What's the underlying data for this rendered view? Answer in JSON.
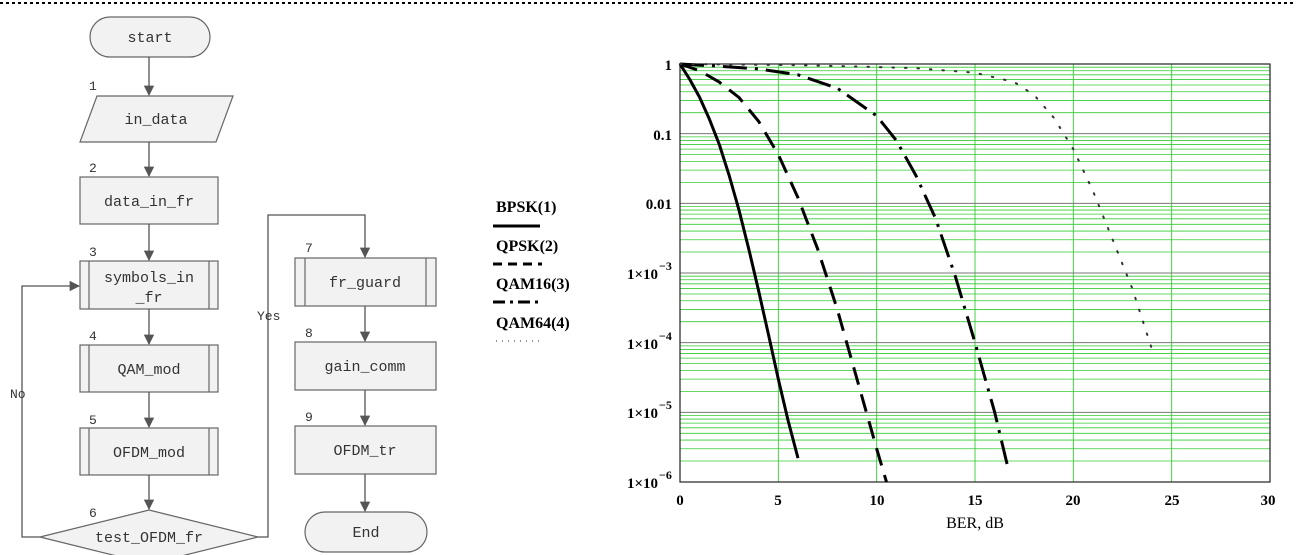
{
  "flowchart": {
    "nodes": [
      {
        "id": "start",
        "label": "start",
        "num": ""
      },
      {
        "id": "in_data",
        "label": "in_data",
        "num": "1"
      },
      {
        "id": "data_in_fr",
        "label": "data_in_fr",
        "num": "2"
      },
      {
        "id": "symbols_in_fr",
        "label_line1": "symbols_in",
        "label_line2": "_fr",
        "num": "3"
      },
      {
        "id": "qam_mod",
        "label": "QAM_mod",
        "num": "4"
      },
      {
        "id": "ofdm_mod",
        "label": "OFDM_mod",
        "num": "5"
      },
      {
        "id": "test_ofdm_fr",
        "label": "test_OFDM_fr",
        "num": "6"
      },
      {
        "id": "fr_guard",
        "label": "fr_guard",
        "num": "7"
      },
      {
        "id": "gain_comm",
        "label": "gain_comm",
        "num": "8"
      },
      {
        "id": "ofdm_tr",
        "label": "OFDM_tr",
        "num": "9"
      },
      {
        "id": "end",
        "label": "End",
        "num": ""
      }
    ],
    "edges": {
      "yes_label": "Yes",
      "no_label": "No"
    }
  },
  "chart_data": {
    "type": "line",
    "xlabel": "BER, dB",
    "ylabel": "",
    "title": "",
    "xlim": [
      0,
      30
    ],
    "ylim": [
      1e-06,
      1
    ],
    "y_scale": "log",
    "x_ticks": [
      "0",
      "5",
      "10",
      "15",
      "20",
      "25",
      "30"
    ],
    "y_ticks": [
      {
        "value": 1,
        "label": "1",
        "exp": ""
      },
      {
        "value": 0.1,
        "label": "0.1",
        "exp": ""
      },
      {
        "value": 0.01,
        "label": "0.01",
        "exp": ""
      },
      {
        "value": 0.001,
        "label": "1×10",
        "exp": "−3"
      },
      {
        "value": 0.0001,
        "label": "1×10",
        "exp": "−4"
      },
      {
        "value": 1e-05,
        "label": "1×10",
        "exp": "−5"
      },
      {
        "value": 1e-06,
        "label": "1×10",
        "exp": "−6"
      }
    ],
    "grid": true,
    "legend_position": "left",
    "series": [
      {
        "name": "BPSK(1)",
        "style": "solid",
        "x": [
          0,
          0.5,
          1,
          1.5,
          2,
          2.5,
          3,
          3.5,
          4,
          4.5,
          5,
          5.5,
          6
        ],
        "y": [
          1,
          0.6,
          0.33,
          0.16,
          0.07,
          0.025,
          0.008,
          0.0022,
          0.00055,
          0.00013,
          3e-05,
          7.5e-06,
          2.2e-06
        ]
      },
      {
        "name": "QPSK(2)",
        "style": "dashed",
        "x": [
          0,
          1,
          2,
          3,
          4,
          5,
          6,
          7,
          8,
          9,
          10,
          10.5
        ],
        "y": [
          1,
          0.8,
          0.55,
          0.33,
          0.15,
          0.05,
          0.012,
          0.0022,
          0.0003,
          3e-05,
          3e-06,
          9e-07
        ]
      },
      {
        "name": "QAM16(3)",
        "style": "dashdot",
        "x": [
          0,
          2,
          4,
          6,
          8,
          10,
          11,
          12,
          13,
          14,
          15,
          16,
          16.7
        ],
        "y": [
          1,
          0.93,
          0.85,
          0.7,
          0.45,
          0.18,
          0.08,
          0.025,
          0.006,
          0.0009,
          0.0001,
          1e-05,
          1.5e-06
        ]
      },
      {
        "name": "QAM64(4)",
        "style": "dotted",
        "x": [
          0,
          3,
          6,
          9,
          12,
          15,
          17,
          18,
          19,
          20,
          21,
          22,
          23,
          24
        ],
        "y": [
          1,
          0.98,
          0.96,
          0.92,
          0.87,
          0.75,
          0.55,
          0.36,
          0.17,
          0.06,
          0.015,
          0.003,
          0.0006,
          8e-05
        ]
      }
    ]
  }
}
